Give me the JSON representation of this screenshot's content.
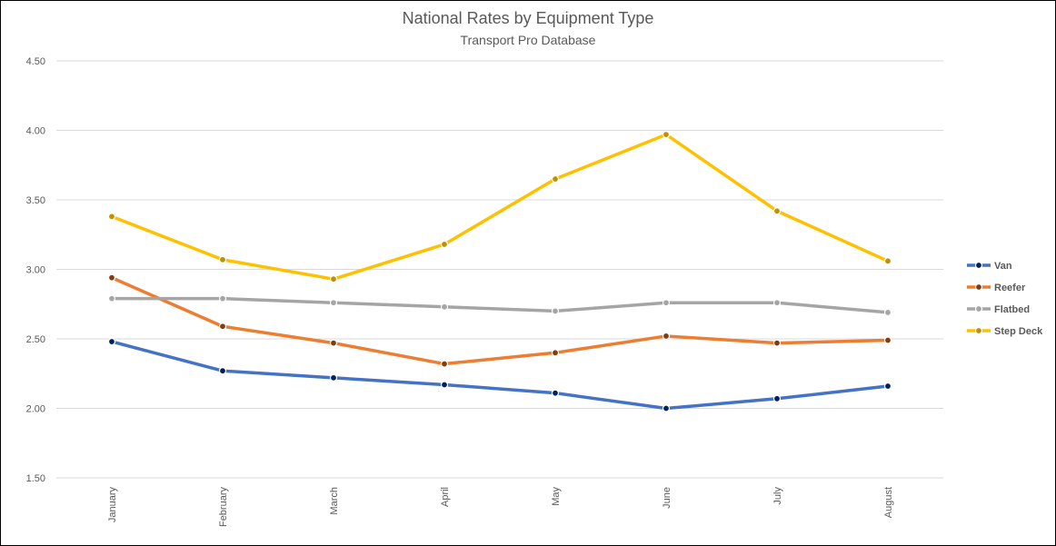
{
  "chart_data": {
    "type": "line",
    "title": "National Rates by Equipment Type",
    "subtitle": "Transport Pro Database",
    "categories": [
      "January",
      "February",
      "March",
      "April",
      "May",
      "June",
      "July",
      "August"
    ],
    "ylim": [
      1.5,
      4.5
    ],
    "yticks": [
      "1.50",
      "2.00",
      "2.50",
      "3.00",
      "3.50",
      "4.00",
      "4.50"
    ],
    "grid": true,
    "legend_position": "right",
    "series": [
      {
        "name": "Van",
        "color": "#4472C4",
        "marker_color": "#002060",
        "values": [
          2.48,
          2.27,
          2.22,
          2.17,
          2.11,
          2.0,
          2.07,
          2.16
        ]
      },
      {
        "name": "Reefer",
        "color": "#ED7D31",
        "marker_color": "#843C0C",
        "values": [
          2.94,
          2.59,
          2.47,
          2.32,
          2.4,
          2.52,
          2.47,
          2.49
        ]
      },
      {
        "name": "Flatbed",
        "color": "#A5A5A5",
        "marker_color": "#A5A5A5",
        "values": [
          2.79,
          2.79,
          2.76,
          2.73,
          2.7,
          2.76,
          2.76,
          2.69
        ]
      },
      {
        "name": "Step Deck",
        "color": "#FFC000",
        "marker_color": "#BF9000",
        "values": [
          3.38,
          3.07,
          2.93,
          3.18,
          3.65,
          3.97,
          3.42,
          3.06
        ]
      }
    ]
  }
}
